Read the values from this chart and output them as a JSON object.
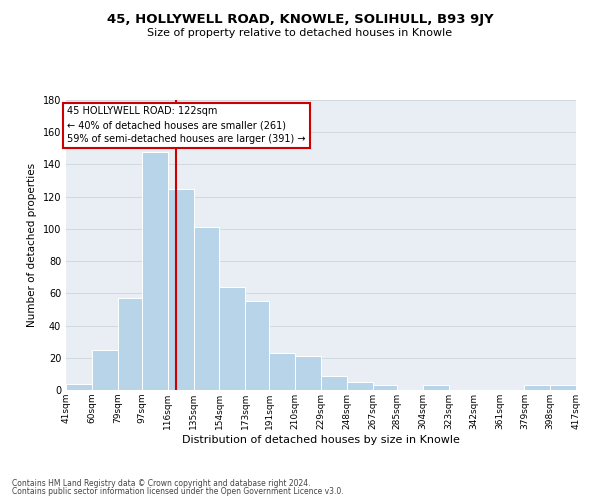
{
  "title": "45, HOLLYWELL ROAD, KNOWLE, SOLIHULL, B93 9JY",
  "subtitle": "Size of property relative to detached houses in Knowle",
  "xlabel": "Distribution of detached houses by size in Knowle",
  "ylabel": "Number of detached properties",
  "bar_edges": [
    41,
    60,
    79,
    97,
    116,
    135,
    154,
    173,
    191,
    210,
    229,
    248,
    267,
    285,
    304,
    323,
    342,
    361,
    379,
    398,
    417
  ],
  "bar_heights": [
    4,
    25,
    57,
    148,
    125,
    101,
    64,
    55,
    23,
    21,
    9,
    5,
    3,
    0,
    3,
    0,
    0,
    0,
    3,
    3
  ],
  "bar_color": "#b8d4e8",
  "grid_color": "#d0d8e0",
  "vline_x": 122,
  "vline_color": "#cc0000",
  "ylim": [
    0,
    180
  ],
  "yticks": [
    0,
    20,
    40,
    60,
    80,
    100,
    120,
    140,
    160,
    180
  ],
  "annotation_title": "45 HOLLYWELL ROAD: 122sqm",
  "annotation_line1": "← 40% of detached houses are smaller (261)",
  "annotation_line2": "59% of semi-detached houses are larger (391) →",
  "annotation_box_color": "#ffffff",
  "annotation_box_edge": "#cc0000",
  "footer1": "Contains HM Land Registry data © Crown copyright and database right 2024.",
  "footer2": "Contains public sector information licensed under the Open Government Licence v3.0.",
  "tick_labels": [
    "41sqm",
    "60sqm",
    "79sqm",
    "97sqm",
    "116sqm",
    "135sqm",
    "154sqm",
    "173sqm",
    "191sqm",
    "210sqm",
    "229sqm",
    "248sqm",
    "267sqm",
    "285sqm",
    "304sqm",
    "323sqm",
    "342sqm",
    "361sqm",
    "379sqm",
    "398sqm",
    "417sqm"
  ],
  "bg_color": "#e8eef4"
}
